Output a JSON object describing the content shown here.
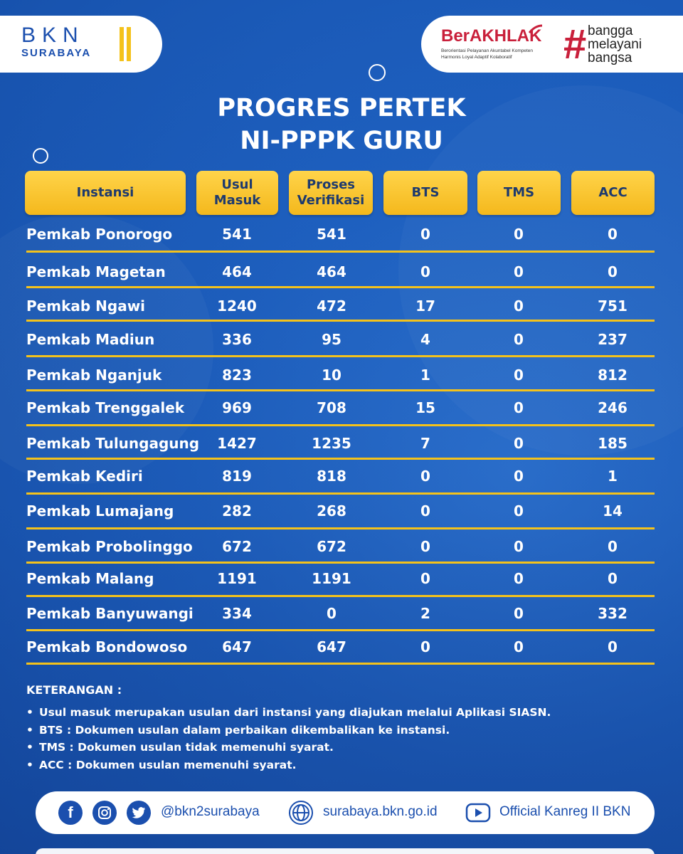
{
  "logo": {
    "name": "BKN",
    "sub": "SURABAYA"
  },
  "brand": {
    "berakhlak": "BerAKHLAK",
    "tagline_line1": "Berorientasi Pelayanan Akuntabel Kompeten",
    "tagline_line2": "Harmonis Loyal Adaptif Kolaboratif",
    "hash": "#",
    "bangga_lines": [
      "bangga",
      "melayani",
      "bangsa"
    ],
    "accent": "#c9203b"
  },
  "title": {
    "line1": "PROGRES PERTEK",
    "line2": "NI-PPPK GURU"
  },
  "table": {
    "headers": [
      {
        "lines": [
          "Instansi"
        ]
      },
      {
        "lines": [
          "Usul",
          "Masuk"
        ]
      },
      {
        "lines": [
          "Proses",
          "Verifikasi"
        ]
      },
      {
        "lines": [
          "BTS"
        ]
      },
      {
        "lines": [
          "TMS"
        ]
      },
      {
        "lines": [
          "ACC"
        ]
      }
    ],
    "rows": [
      {
        "instansi": "Pemkab Ponorogo",
        "usul": "541",
        "proses": "541",
        "bts": "0",
        "tms": "0",
        "acc": "0"
      },
      {
        "instansi": "Pemkab Magetan",
        "usul": "464",
        "proses": "464",
        "bts": "0",
        "tms": "0",
        "acc": "0"
      },
      {
        "instansi": "Pemkab Ngawi",
        "usul": "1240",
        "proses": "472",
        "bts": "17",
        "tms": "0",
        "acc": "751"
      },
      {
        "instansi": "Pemkab Madiun",
        "usul": "336",
        "proses": "95",
        "bts": "4",
        "tms": "0",
        "acc": "237"
      },
      {
        "instansi": "Pemkab Nganjuk",
        "usul": "823",
        "proses": "10",
        "bts": "1",
        "tms": "0",
        "acc": "812"
      },
      {
        "instansi": "Pemkab Trenggalek",
        "usul": "969",
        "proses": "708",
        "bts": "15",
        "tms": "0",
        "acc": "246"
      },
      {
        "instansi": "Pemkab Tulungagung",
        "usul": "1427",
        "proses": "1235",
        "bts": "7",
        "tms": "0",
        "acc": "185"
      },
      {
        "instansi": "Pemkab Kediri",
        "usul": "819",
        "proses": "818",
        "bts": "0",
        "tms": "0",
        "acc": "1"
      },
      {
        "instansi": "Pemkab Lumajang",
        "usul": "282",
        "proses": "268",
        "bts": "0",
        "tms": "0",
        "acc": "14"
      },
      {
        "instansi": "Pemkab Probolinggo",
        "usul": "672",
        "proses": "672",
        "bts": "0",
        "tms": "0",
        "acc": "0"
      },
      {
        "instansi": "Pemkab Malang",
        "usul": "1191",
        "proses": "1191",
        "bts": "0",
        "tms": "0",
        "acc": "0"
      },
      {
        "instansi": "Pemkab Banyuwangi",
        "usul": "334",
        "proses": "0",
        "bts": "2",
        "tms": "0",
        "acc": "332"
      },
      {
        "instansi": "Pemkab Bondowoso",
        "usul": "647",
        "proses": "647",
        "bts": "0",
        "tms": "0",
        "acc": "0"
      }
    ]
  },
  "notes": {
    "title": "KETERANGAN :",
    "items": [
      "Usul masuk merupakan usulan dari instansi yang diajukan melalui Aplikasi SIASN.",
      "BTS  : Dokumen usulan dalam perbaikan dikembalikan ke instansi.",
      "TMS : Dokumen usulan tidak memenuhi syarat.",
      "ACC  : Dokumen usulan memenuhi syarat."
    ]
  },
  "footer": {
    "handle": "@bkn2surabaya",
    "website": "surabaya.bkn.go.id",
    "youtube": "Official Kanreg II BKN",
    "icons": [
      "facebook-icon",
      "instagram-icon",
      "twitter-icon",
      "globe-icon",
      "youtube-icon"
    ]
  },
  "colors": {
    "accent": "#f4c21b",
    "brand_blue": "#1b4fae"
  }
}
